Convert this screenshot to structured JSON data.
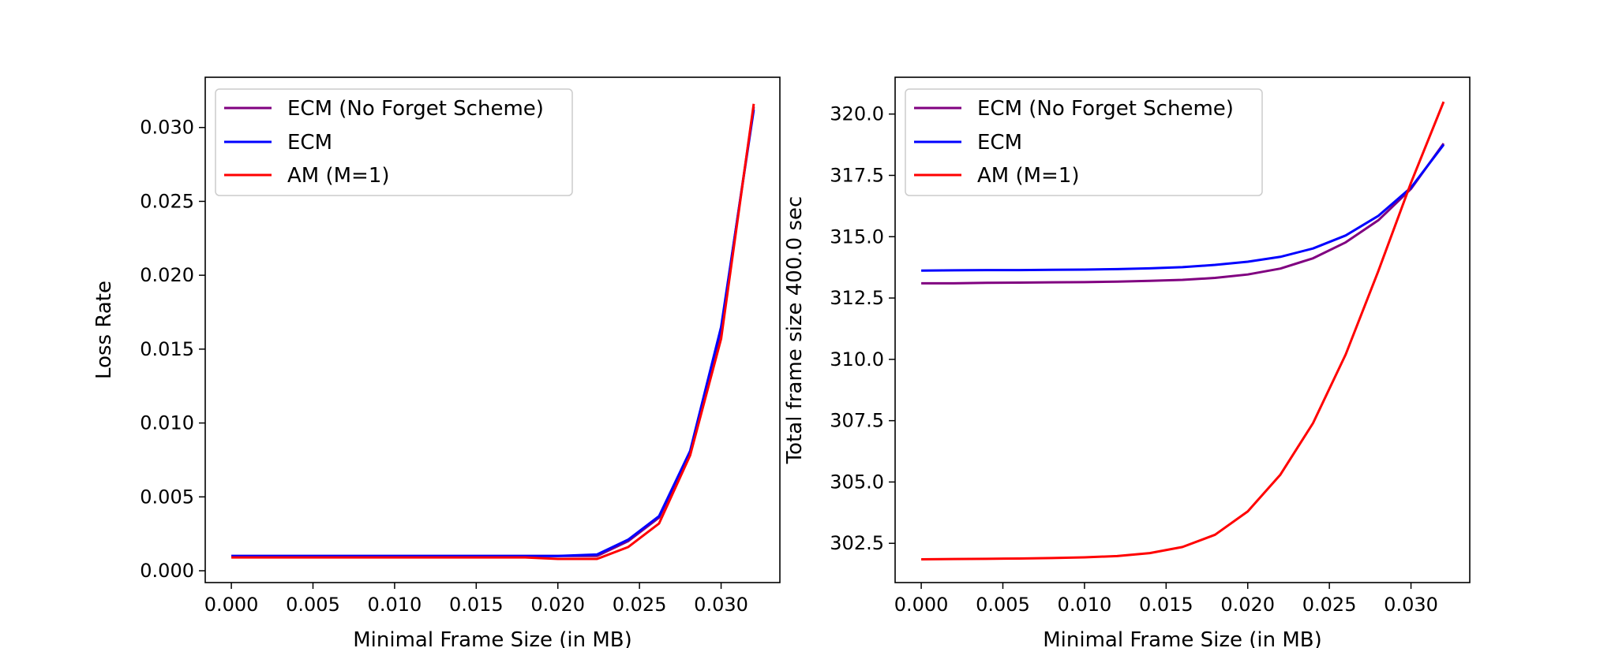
{
  "chart_data": [
    {
      "type": "line",
      "xlabel": "Minimal Frame Size (in MB)",
      "ylabel": "Loss Rate",
      "xlim": [
        -0.0016,
        0.0336
      ],
      "ylim": [
        -0.0008,
        0.0334
      ],
      "xticks": [
        "0.000",
        "0.005",
        "0.010",
        "0.015",
        "0.020",
        "0.025",
        "0.030"
      ],
      "xtick_values": [
        0.0,
        0.005,
        0.01,
        0.015,
        0.02,
        0.025,
        0.03
      ],
      "yticks": [
        "0.000",
        "0.005",
        "0.010",
        "0.015",
        "0.020",
        "0.025",
        "0.030"
      ],
      "ytick_values": [
        0.0,
        0.005,
        0.01,
        0.015,
        0.02,
        0.025,
        0.03
      ],
      "legend": "upper left",
      "grid": false,
      "x": [
        0.0,
        0.002,
        0.004,
        0.006,
        0.008,
        0.01,
        0.012,
        0.014,
        0.016,
        0.018,
        0.02,
        0.0224,
        0.0243,
        0.0262,
        0.0281,
        0.03,
        0.032
      ],
      "series": [
        {
          "name": "ECM (No Forget Scheme)",
          "color": "#800080",
          "values": [
            0.001,
            0.001,
            0.001,
            0.001,
            0.001,
            0.001,
            0.001,
            0.001,
            0.001,
            0.001,
            0.001,
            0.001,
            0.002,
            0.0036,
            0.008,
            0.0163,
            0.0314
          ]
        },
        {
          "name": "ECM",
          "color": "#0000ff",
          "values": [
            0.001,
            0.001,
            0.001,
            0.001,
            0.001,
            0.001,
            0.001,
            0.001,
            0.001,
            0.001,
            0.001,
            0.0011,
            0.0021,
            0.0037,
            0.0081,
            0.0165,
            0.0312
          ]
        },
        {
          "name": "AM (M=1)",
          "color": "#ff0000",
          "values": [
            0.0009,
            0.0009,
            0.0009,
            0.0009,
            0.0009,
            0.0009,
            0.0009,
            0.0009,
            0.0009,
            0.0009,
            0.0008,
            0.0008,
            0.0016,
            0.0032,
            0.0078,
            0.0157,
            0.0316
          ]
        }
      ]
    },
    {
      "type": "line",
      "xlabel": "Minimal Frame Size (in MB)",
      "ylabel": "Total frame size 400.0 sec",
      "xlim": [
        -0.0016,
        0.0336
      ],
      "ylim": [
        300.9,
        321.5
      ],
      "xticks": [
        "0.000",
        "0.005",
        "0.010",
        "0.015",
        "0.020",
        "0.025",
        "0.030"
      ],
      "xtick_values": [
        0.0,
        0.005,
        0.01,
        0.015,
        0.02,
        0.025,
        0.03
      ],
      "yticks": [
        "302.5",
        "305.0",
        "307.5",
        "310.0",
        "312.5",
        "315.0",
        "317.5",
        "320.0"
      ],
      "ytick_values": [
        302.5,
        305.0,
        307.5,
        310.0,
        312.5,
        315.0,
        317.5,
        320.0
      ],
      "legend": "upper left",
      "grid": false,
      "x": [
        0.0,
        0.002,
        0.004,
        0.006,
        0.008,
        0.01,
        0.012,
        0.014,
        0.016,
        0.018,
        0.02,
        0.022,
        0.024,
        0.026,
        0.028,
        0.03,
        0.032
      ],
      "series": [
        {
          "name": "ECM (No Forget Scheme)",
          "color": "#800080",
          "values": [
            313.1,
            313.1,
            313.12,
            313.13,
            313.14,
            313.15,
            313.17,
            313.2,
            313.24,
            313.32,
            313.46,
            313.7,
            314.12,
            314.77,
            315.67,
            316.95,
            318.8
          ]
        },
        {
          "name": "ECM",
          "color": "#0000ff",
          "values": [
            313.62,
            313.63,
            313.64,
            313.64,
            313.65,
            313.66,
            313.68,
            313.71,
            313.76,
            313.85,
            313.98,
            314.18,
            314.52,
            315.05,
            315.85,
            317.0,
            318.75
          ]
        },
        {
          "name": "AM (M=1)",
          "color": "#ff0000",
          "values": [
            301.85,
            301.86,
            301.87,
            301.88,
            301.9,
            301.93,
            301.98,
            302.1,
            302.35,
            302.85,
            303.8,
            305.3,
            307.4,
            310.2,
            313.6,
            317.2,
            320.5
          ]
        }
      ]
    }
  ]
}
